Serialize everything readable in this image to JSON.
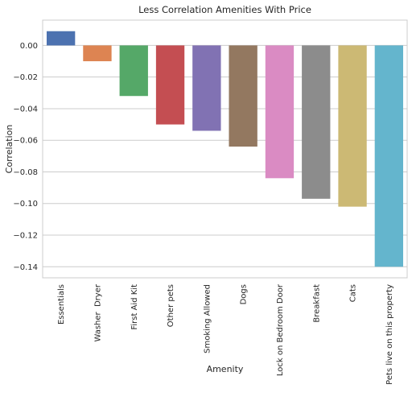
{
  "chart_data": {
    "type": "bar",
    "title": "Less Correlation Amenities With Price",
    "xlabel": "Amenity",
    "ylabel": "Correlation",
    "categories": [
      "Essentials",
      "Washer  Dryer",
      "First Aid Kit",
      "Other pets",
      "Smoking Allowed",
      "Dogs",
      "Lock on Bedroom Door",
      "Breakfast",
      "Cats",
      "Pets live on this property"
    ],
    "values": [
      0.009,
      -0.01,
      -0.032,
      -0.05,
      -0.054,
      -0.064,
      -0.084,
      -0.097,
      -0.102,
      -0.14
    ],
    "colors": [
      "#4c72b0",
      "#dd8452",
      "#55a868",
      "#c44e52",
      "#8172b3",
      "#937860",
      "#da8bc3",
      "#8c8c8c",
      "#ccb974",
      "#64b5cd"
    ],
    "yticks": [
      0.0,
      -0.02,
      -0.04,
      -0.06,
      -0.08,
      -0.1,
      -0.12,
      -0.14
    ],
    "ytick_labels": [
      "0.00",
      "−0.02",
      "−0.04",
      "−0.06",
      "−0.08",
      "−0.10",
      "−0.12",
      "−0.14"
    ],
    "ylim": [
      -0.147,
      0.016
    ],
    "grid": true
  }
}
